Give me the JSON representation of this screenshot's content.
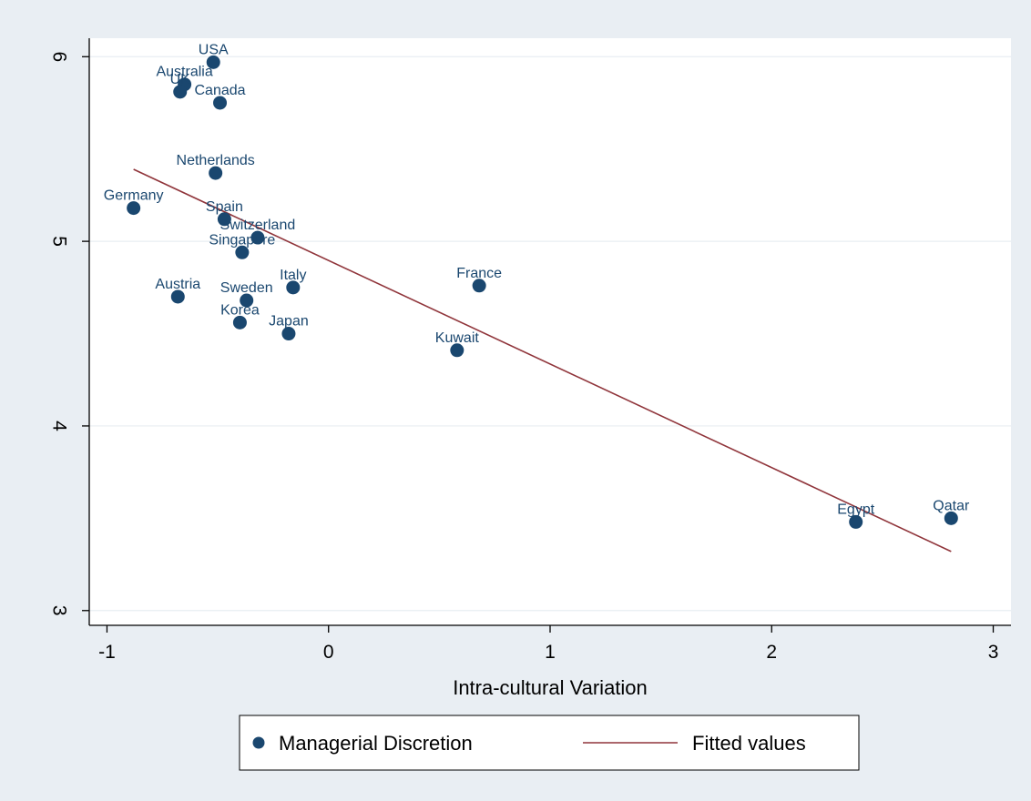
{
  "chart_data": {
    "type": "scatter",
    "title": "",
    "xlabel": "Intra-cultural Variation",
    "ylabel": "",
    "xlim": [
      -1.08,
      3.08
    ],
    "ylim": [
      2.92,
      6.1
    ],
    "xticks": [
      -1,
      0,
      1,
      2,
      3
    ],
    "yticks": [
      3,
      4,
      5,
      6
    ],
    "grid": true,
    "legend_position": "bottom",
    "series": [
      {
        "name": "Managerial Discretion",
        "kind": "scatter",
        "color": "#1a476f",
        "points": [
          {
            "label": "USA",
            "x": -0.52,
            "y": 5.97
          },
          {
            "label": "Australia",
            "x": -0.65,
            "y": 5.85
          },
          {
            "label": "UK",
            "x": -0.67,
            "y": 5.81
          },
          {
            "label": "Canada",
            "x": -0.49,
            "y": 5.75
          },
          {
            "label": "Netherlands",
            "x": -0.51,
            "y": 5.37
          },
          {
            "label": "Germany",
            "x": -0.88,
            "y": 5.18
          },
          {
            "label": "Spain",
            "x": -0.47,
            "y": 5.12
          },
          {
            "label": "Switzerland",
            "x": -0.32,
            "y": 5.02
          },
          {
            "label": "Singapore",
            "x": -0.39,
            "y": 4.94
          },
          {
            "label": "France",
            "x": 0.68,
            "y": 4.76
          },
          {
            "label": "Italy",
            "x": -0.16,
            "y": 4.75
          },
          {
            "label": "Austria",
            "x": -0.68,
            "y": 4.7
          },
          {
            "label": "Sweden",
            "x": -0.37,
            "y": 4.68
          },
          {
            "label": "Korea",
            "x": -0.4,
            "y": 4.56
          },
          {
            "label": "Japan",
            "x": -0.18,
            "y": 4.5
          },
          {
            "label": "Kuwait",
            "x": 0.58,
            "y": 4.41
          },
          {
            "label": "Egypt",
            "x": 2.38,
            "y": 3.48
          },
          {
            "label": "Qatar",
            "x": 2.81,
            "y": 3.5
          }
        ]
      },
      {
        "name": "Fitted values",
        "kind": "line",
        "color": "#90353b",
        "x": [
          -0.88,
          2.81
        ],
        "y": [
          5.39,
          3.32
        ]
      }
    ]
  }
}
